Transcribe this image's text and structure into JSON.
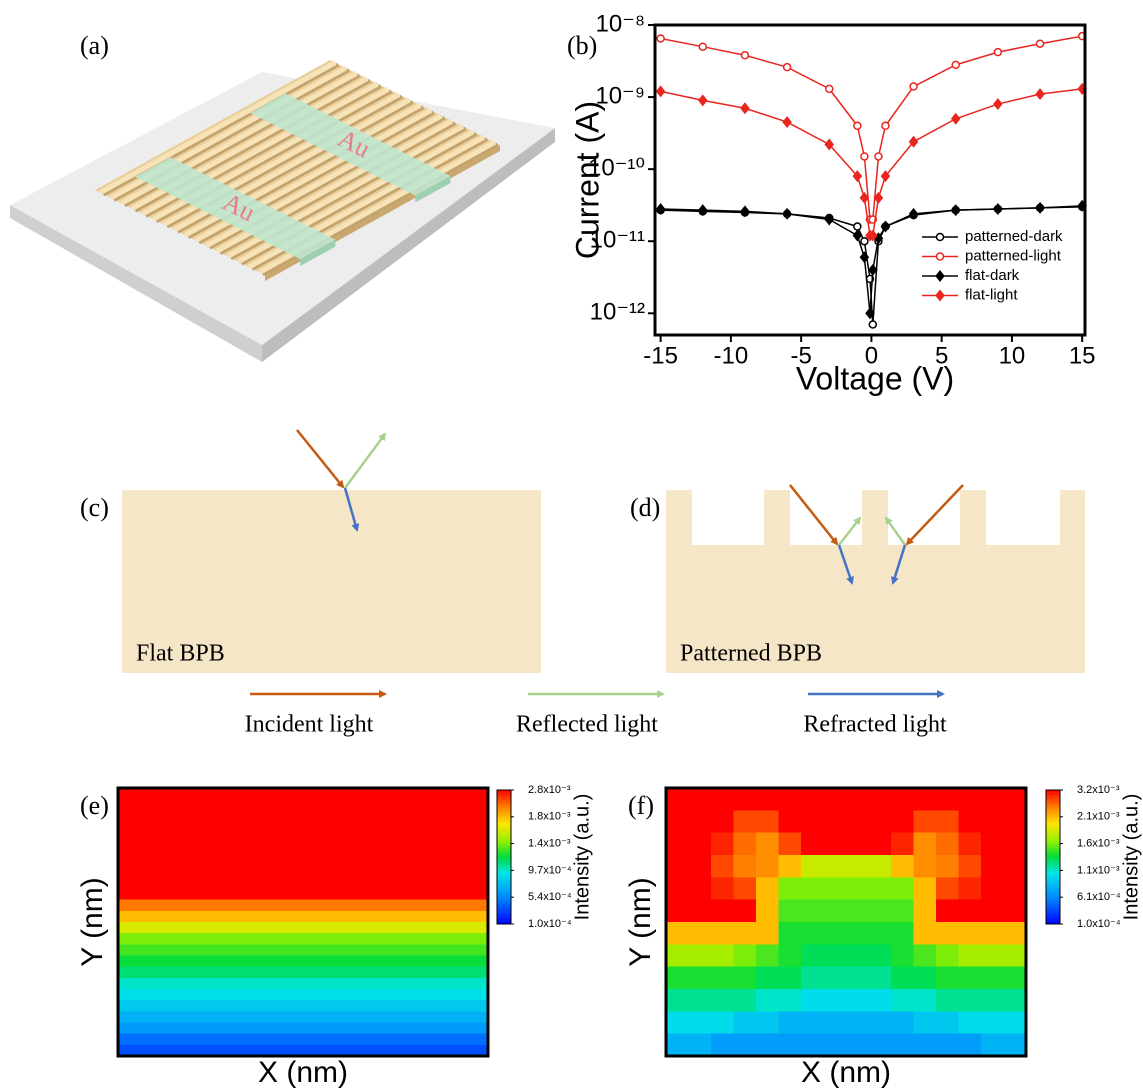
{
  "panel_labels": [
    "(a)",
    "(b)",
    "(c)",
    "(d)",
    "(e)",
    "(f)"
  ],
  "device": {
    "electrodes": [
      "Au",
      "Au"
    ]
  },
  "chart_data": [
    {
      "type": "line",
      "xlabel": "Voltage (V)",
      "ylabel": "Current (A)",
      "log_y": true,
      "xlim": [
        -15.4,
        15.2
      ],
      "xticks": [
        -15,
        -10,
        -5,
        0,
        5,
        10,
        15
      ],
      "ylim": [
        5e-13,
        1e-08
      ],
      "yticks": [
        {
          "value": 1e-08,
          "label": "10⁻⁸"
        },
        {
          "value": 1e-09,
          "label": "10⁻⁹"
        },
        {
          "value": 1e-10,
          "label": "10⁻¹⁰"
        },
        {
          "value": 1e-11,
          "label": "10⁻¹¹"
        },
        {
          "value": 1e-12,
          "label": "10⁻¹²"
        }
      ],
      "legend": "lower right",
      "x": [
        -15,
        -12,
        -9,
        -6,
        -3,
        -1,
        -0.5,
        -0.1,
        0.1,
        0.5,
        1,
        3,
        6,
        9,
        12,
        15
      ],
      "series": [
        {
          "name": "patterned-dark",
          "color": "#000000",
          "marker": "circle",
          "filled": false,
          "values": [
            2.7e-11,
            2.6e-11,
            2.5e-11,
            2.4e-11,
            2.1e-11,
            1.6e-11,
            1e-11,
            3e-12,
            7e-13,
            1e-11,
            1.6e-11,
            2.3e-11,
            2.7e-11,
            2.8e-11,
            2.9e-11,
            3e-11
          ]
        },
        {
          "name": "patterned-light",
          "color": "#e8261f",
          "marker": "circle",
          "filled": false,
          "values": [
            6.5e-09,
            5e-09,
            3.8e-09,
            2.6e-09,
            1.3e-09,
            4e-10,
            1.5e-10,
            2e-11,
            2e-11,
            1.5e-10,
            4e-10,
            1.4e-09,
            2.8e-09,
            4.2e-09,
            5.5e-09,
            7e-09
          ]
        },
        {
          "name": "flat-dark",
          "color": "#000000",
          "marker": "diamond",
          "filled": true,
          "values": [
            2.8e-11,
            2.7e-11,
            2.6e-11,
            2.4e-11,
            2e-11,
            1.2e-11,
            6e-12,
            1e-12,
            4e-12,
            1.1e-11,
            1.6e-11,
            2.4e-11,
            2.7e-11,
            2.8e-11,
            2.9e-11,
            3.1e-11
          ]
        },
        {
          "name": "flat-light",
          "color": "#e8261f",
          "marker": "diamond",
          "filled": true,
          "values": [
            1.2e-09,
            9e-10,
            7e-10,
            4.5e-10,
            2.2e-10,
            8e-11,
            4e-11,
            1.2e-11,
            1.2e-11,
            4e-11,
            8e-11,
            2.4e-10,
            5e-10,
            8e-10,
            1.1e-09,
            1.3e-09
          ]
        }
      ]
    },
    {
      "type": "heatmap",
      "xlabel": "X (nm)",
      "ylabel": "Y (nm)",
      "colorbar_label": "Intensity (a.u.)",
      "colorbar_ticks": [
        {
          "value": 0.0028,
          "label": "2.8x10⁻³"
        },
        {
          "value": 0.0018,
          "label": "1.8x10⁻³"
        },
        {
          "value": 0.0014,
          "label": "1.4x10⁻³"
        },
        {
          "value": 0.00097,
          "label": "9.7x10⁻⁴"
        },
        {
          "value": 0.00054,
          "label": "5.4x10⁻⁴"
        },
        {
          "value": 0.0001,
          "label": "1.0x10⁻⁴"
        }
      ],
      "values": [
        [
          0.0028
        ],
        [
          0.0028
        ],
        [
          0.0028
        ],
        [
          0.0028
        ],
        [
          0.0028
        ],
        [
          0.0028
        ],
        [
          0.0028
        ],
        [
          0.0028
        ],
        [
          0.0028
        ],
        [
          0.0028
        ],
        [
          0.0022
        ],
        [
          0.0018
        ],
        [
          0.0016
        ],
        [
          0.0014
        ],
        [
          0.0013
        ],
        [
          0.0012
        ],
        [
          0.0011
        ],
        [
          0.00097
        ],
        [
          0.0009
        ],
        [
          0.0008
        ],
        [
          0.0007
        ],
        [
          0.0006
        ],
        [
          0.00045
        ],
        [
          0.00035
        ]
      ]
    },
    {
      "type": "heatmap",
      "xlabel": "X (nm)",
      "ylabel": "Y (nm)",
      "colorbar_label": "Intensity (a.u.)",
      "colorbar_ticks": [
        {
          "value": 0.0032,
          "label": "3.2x10⁻³"
        },
        {
          "value": 0.0021,
          "label": "2.1x10⁻³"
        },
        {
          "value": 0.0016,
          "label": "1.6x10⁻³"
        },
        {
          "value": 0.0011,
          "label": "1.1x10⁻³"
        },
        {
          "value": 0.00061,
          "label": "6.1x10⁻⁴"
        },
        {
          "value": 0.0001,
          "label": "1.0x10⁻⁴"
        }
      ],
      "values": [
        [
          0.0032,
          0.0032,
          0.0032,
          0.0032,
          0.0032,
          0.0032,
          0.0032,
          0.0032,
          0.0032,
          0.0032,
          0.0032,
          0.0032,
          0.0032,
          0.0032,
          0.0032,
          0.0032
        ],
        [
          0.0032,
          0.0032,
          0.0032,
          0.0028,
          0.0028,
          0.0032,
          0.0032,
          0.0032,
          0.0032,
          0.0032,
          0.0032,
          0.0028,
          0.0028,
          0.0032,
          0.0032,
          0.0032
        ],
        [
          0.0032,
          0.0032,
          0.003,
          0.0026,
          0.0024,
          0.0028,
          0.0032,
          0.0032,
          0.0032,
          0.0032,
          0.003,
          0.0024,
          0.0026,
          0.003,
          0.0032,
          0.0032
        ],
        [
          0.0032,
          0.0032,
          0.0028,
          0.0025,
          0.0024,
          0.0021,
          0.0018,
          0.0018,
          0.0018,
          0.0018,
          0.0021,
          0.0024,
          0.0025,
          0.0028,
          0.0032,
          0.0032
        ],
        [
          0.0032,
          0.0032,
          0.003,
          0.0028,
          0.0021,
          0.0016,
          0.0016,
          0.0016,
          0.0016,
          0.0016,
          0.0016,
          0.0021,
          0.0028,
          0.003,
          0.0032,
          0.0032
        ],
        [
          0.0032,
          0.0032,
          0.0032,
          0.0032,
          0.0021,
          0.0015,
          0.0015,
          0.0015,
          0.0015,
          0.0015,
          0.0015,
          0.0021,
          0.0032,
          0.0032,
          0.0032,
          0.0032
        ],
        [
          0.0021,
          0.0021,
          0.0021,
          0.0021,
          0.0021,
          0.0014,
          0.0014,
          0.0014,
          0.0014,
          0.0014,
          0.0014,
          0.0021,
          0.0021,
          0.0021,
          0.0021,
          0.0021
        ],
        [
          0.0017,
          0.0017,
          0.0017,
          0.0016,
          0.0015,
          0.0014,
          0.0013,
          0.0013,
          0.0013,
          0.0013,
          0.0014,
          0.0015,
          0.0016,
          0.0017,
          0.0017,
          0.0017
        ],
        [
          0.0014,
          0.0014,
          0.0014,
          0.0014,
          0.0013,
          0.0013,
          0.0012,
          0.0012,
          0.0012,
          0.0012,
          0.0013,
          0.0013,
          0.0014,
          0.0014,
          0.0014,
          0.0014
        ],
        [
          0.0012,
          0.0012,
          0.0012,
          0.0012,
          0.0011,
          0.0011,
          0.001,
          0.001,
          0.001,
          0.001,
          0.0011,
          0.0011,
          0.0012,
          0.0012,
          0.0012,
          0.0012
        ],
        [
          0.001,
          0.001,
          0.001,
          0.0009,
          0.0009,
          0.0008,
          0.0008,
          0.0008,
          0.0008,
          0.0008,
          0.0008,
          0.0009,
          0.0009,
          0.001,
          0.001,
          0.001
        ],
        [
          0.0008,
          0.0008,
          0.0007,
          0.0007,
          0.0007,
          0.0007,
          0.0007,
          0.0007,
          0.0007,
          0.0007,
          0.0007,
          0.0007,
          0.0007,
          0.0007,
          0.0008,
          0.0008
        ]
      ]
    }
  ],
  "schematic": {
    "flat": "Flat BPB",
    "patterned": "Patterned BPB",
    "legend": [
      {
        "label": "Incident light",
        "color": "#c55a11"
      },
      {
        "label": "Reflected light",
        "color": "#a9d18e"
      },
      {
        "label": "Refracted light",
        "color": "#4472c4"
      }
    ]
  }
}
